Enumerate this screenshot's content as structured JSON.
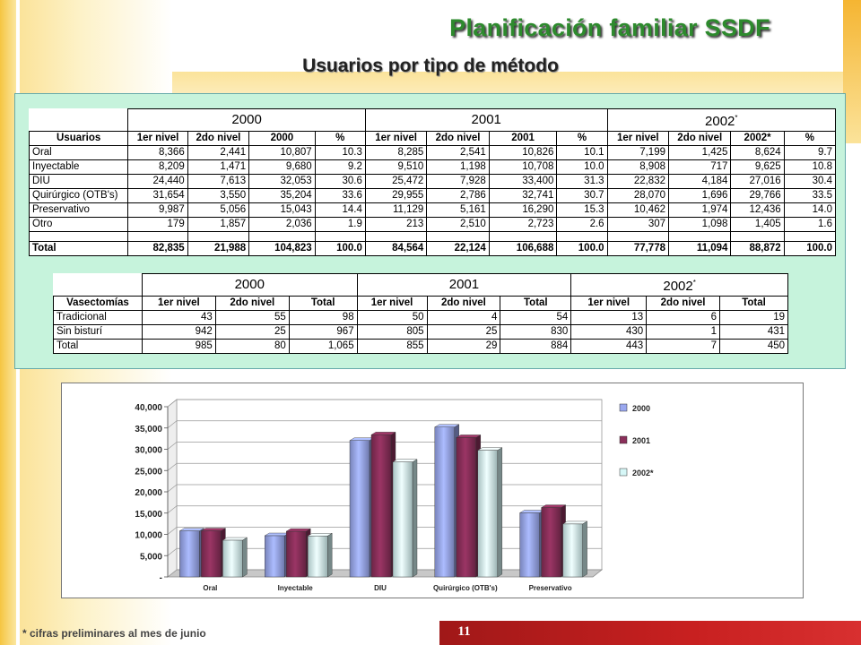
{
  "title": "Planificación familiar SSDF",
  "subtitle": "Usuarios por tipo de método",
  "footnote": "* cifras preliminares al mes de junio",
  "page_number": "11",
  "colors": {
    "title": "#2d8a2d",
    "panel": "#c6f3dc",
    "bar_2000": "#9aa8ef",
    "bar_2001": "#8a2f5a",
    "bar_2002": "#d6f7f7",
    "page_bar": "#c82020"
  },
  "table_usuarios": {
    "years": [
      "2000",
      "2001",
      "2002"
    ],
    "year_mark": "*",
    "headers": [
      "Usuarios",
      "1er nivel",
      "2do nivel",
      "2000",
      "%",
      "1er nivel",
      "2do nivel",
      "2001",
      "%",
      "1er nivel",
      "2do nivel",
      "2002*",
      "%"
    ],
    "rows": [
      [
        "Oral",
        "8,366",
        "2,441",
        "10,807",
        "10.3",
        "8,285",
        "2,541",
        "10,826",
        "10.1",
        "7,199",
        "1,425",
        "8,624",
        "9.7"
      ],
      [
        "Inyectable",
        "8,209",
        "1,471",
        "9,680",
        "9.2",
        "9,510",
        "1,198",
        "10,708",
        "10.0",
        "8,908",
        "717",
        "9,625",
        "10.8"
      ],
      [
        "DIU",
        "24,440",
        "7,613",
        "32,053",
        "30.6",
        "25,472",
        "7,928",
        "33,400",
        "31.3",
        "22,832",
        "4,184",
        "27,016",
        "30.4"
      ],
      [
        "Quirúrgico (OTB's)",
        "31,654",
        "3,550",
        "35,204",
        "33.6",
        "29,955",
        "2,786",
        "32,741",
        "30.7",
        "28,070",
        "1,696",
        "29,766",
        "33.5"
      ],
      [
        "Preservativo",
        "9,987",
        "5,056",
        "15,043",
        "14.4",
        "11,129",
        "5,161",
        "16,290",
        "15.3",
        "10,462",
        "1,974",
        "12,436",
        "14.0"
      ],
      [
        "Otro",
        "179",
        "1,857",
        "2,036",
        "1.9",
        "213",
        "2,510",
        "2,723",
        "2.6",
        "307",
        "1,098",
        "1,405",
        "1.6"
      ]
    ],
    "total": [
      "Total",
      "82,835",
      "21,988",
      "104,823",
      "100.0",
      "84,564",
      "22,124",
      "106,688",
      "100.0",
      "77,778",
      "11,094",
      "88,872",
      "100.0"
    ]
  },
  "table_vasectomias": {
    "years": [
      "2000",
      "2001",
      "2002"
    ],
    "year_mark": "*",
    "headers": [
      "Vasectomías",
      "1er nivel",
      "2do nivel",
      "Total",
      "1er nivel",
      "2do nivel",
      "Total",
      "1er nivel",
      "2do nivel",
      "Total"
    ],
    "rows": [
      [
        "Tradicional",
        "43",
        "55",
        "98",
        "50",
        "4",
        "54",
        "13",
        "6",
        "19"
      ],
      [
        "Sin bisturí",
        "942",
        "25",
        "967",
        "805",
        "25",
        "830",
        "430",
        "1",
        "431"
      ],
      [
        "Total",
        "985",
        "80",
        "1,065",
        "855",
        "29",
        "884",
        "443",
        "7",
        "450"
      ]
    ]
  },
  "chart_data": {
    "type": "bar",
    "categories": [
      "Oral",
      "Inyectable",
      "DIU",
      "Quirúrgico (OTB's)",
      "Preservativo"
    ],
    "series": [
      {
        "name": "2000",
        "values": [
          10807,
          9680,
          32053,
          35204,
          15043
        ],
        "color": "#9aa8ef"
      },
      {
        "name": "2001",
        "values": [
          10826,
          10708,
          33400,
          32741,
          16290
        ],
        "color": "#8a2f5a"
      },
      {
        "name": "2002*",
        "values": [
          8624,
          9625,
          27016,
          29766,
          12436
        ],
        "color": "#d6f7f7"
      }
    ],
    "yticks": [
      "-",
      "5,000",
      "10,000",
      "15,000",
      "20,000",
      "25,000",
      "30,000",
      "35,000",
      "40,000"
    ],
    "ylim": [
      0,
      40000
    ],
    "grid": true,
    "legend": "right",
    "style": "3d"
  }
}
